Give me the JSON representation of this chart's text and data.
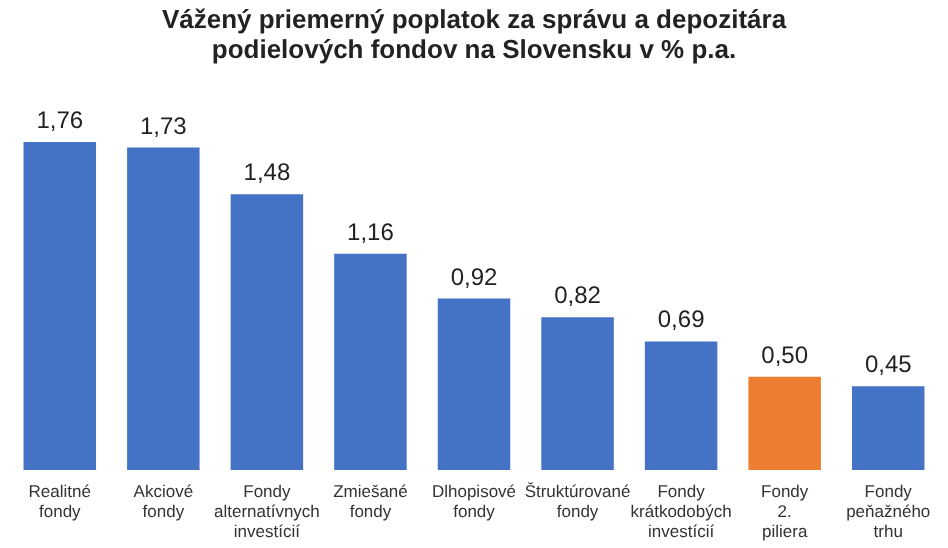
{
  "chart_data": {
    "type": "bar",
    "title": "Vážený priemerný poplatok za správu a depozitára podielových fondov na Slovensku v % p.a.",
    "categories": [
      "Realitné fondy",
      "Akciové fondy",
      "Fondy alternatívnych investícií",
      "Zmiešané fondy",
      "Dlhopisové fondy",
      "Štruktúrované fondy",
      "Fondy krátkodobých investícií",
      "Fondy 2. piliera",
      "Fondy peňažného trhu"
    ],
    "values": [
      1.76,
      1.73,
      1.48,
      1.16,
      0.92,
      0.82,
      0.69,
      0.5,
      0.45
    ],
    "value_labels": [
      "1,76",
      "1,73",
      "1,48",
      "1,16",
      "0,92",
      "0,82",
      "0,69",
      "0,50",
      "0,45"
    ],
    "colors": [
      "#4472c4",
      "#4472c4",
      "#4472c4",
      "#4472c4",
      "#4472c4",
      "#4472c4",
      "#4472c4",
      "#ed7d31",
      "#4472c4"
    ]
  }
}
